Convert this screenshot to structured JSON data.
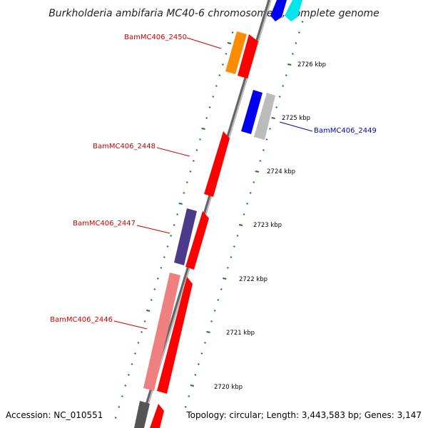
{
  "title": "Burkholderia ambifaria MC40-6 chromosome 1, complete genome",
  "footer": {
    "accession": "Accession: NC_010551",
    "topology": "Topology: circular; Length: 3,443,583 bp; Genes: 3,147"
  },
  "colors": {
    "backbone": "#888888",
    "tick": "#1f7a1f",
    "red": "#ff0000",
    "orange": "#ff8c00",
    "blue": "#0000ee",
    "cyan": "#00e5ee",
    "gray": "#bbbbbb",
    "darkblue": "#4b3a8c",
    "pink": "#f08080",
    "darkgray": "#555555",
    "label_red": "#cc0000",
    "label_blue": "#0000cc"
  },
  "gene_labels": [
    {
      "id": "BamMC406_2450",
      "text": "BamMC406_2450",
      "color": "label_red"
    },
    {
      "id": "BamMC406_2449",
      "text": "BamMC406_2449",
      "color": "label_blue"
    },
    {
      "id": "BamMC406_2448",
      "text": "BamMC406_2448",
      "color": "label_red"
    },
    {
      "id": "BamMC406_2447",
      "text": "BamMC406_2447",
      "color": "label_red"
    },
    {
      "id": "BamMC406_2446",
      "text": "BamMC406_2446",
      "color": "label_red"
    }
  ],
  "scale_labels": [
    "2726 kbp",
    "2725 kbp",
    "2724 kbp",
    "2723 kbp",
    "2722 kbp",
    "2721 kbp",
    "2720 kbp"
  ]
}
